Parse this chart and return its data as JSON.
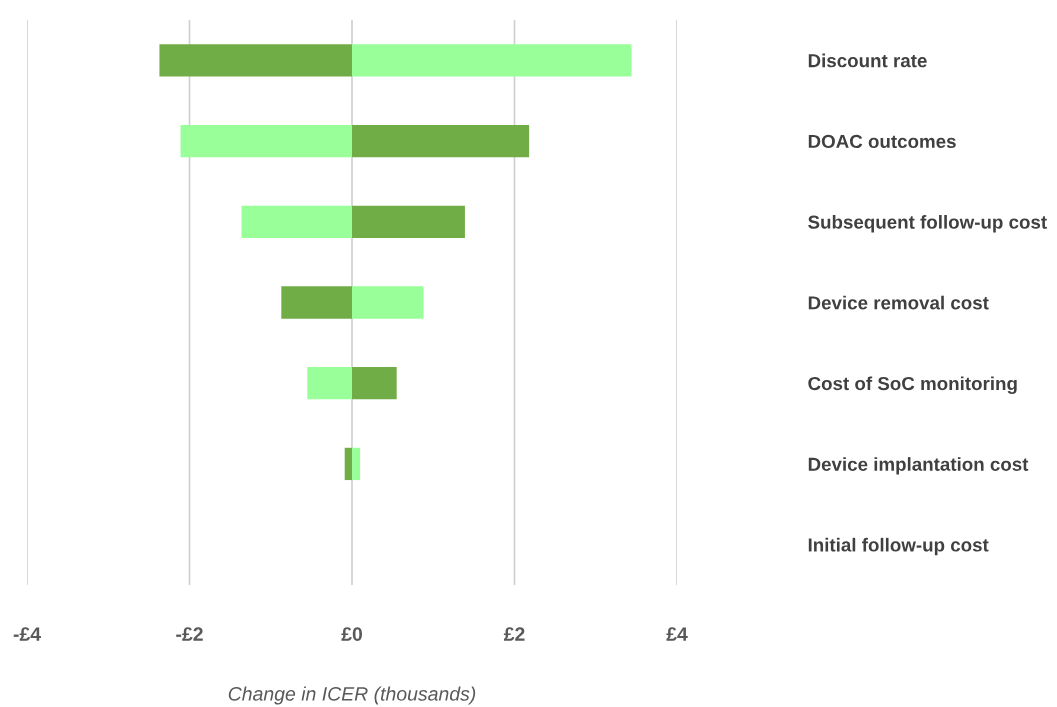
{
  "chart_data": {
    "type": "bar",
    "orientation": "horizontal",
    "xlabel": "Change in ICER (thousands)",
    "categories": [
      "Discount rate",
      "DOAC outcomes",
      "Subsequent follow-up cost",
      "Device removal cost",
      "Cost of SoC monitoring",
      "Device implantation cost",
      "Initial follow-up cost"
    ],
    "stacked": true,
    "series": [
      {
        "color": "#70ad47",
        "values": [
          -2.37,
          2.18,
          1.39,
          -0.87,
          0.55,
          -0.09,
          null
        ]
      },
      {
        "color": "#99ff99",
        "values": [
          3.44,
          -2.11,
          -1.36,
          0.88,
          -0.55,
          0.1,
          null
        ]
      }
    ],
    "xlim": [
      -4,
      4
    ],
    "xticks": [
      {
        "value": -4,
        "label": "-£4"
      },
      {
        "value": -2,
        "label": "-£2"
      },
      {
        "value": 0,
        "label": "£0"
      },
      {
        "value": 2,
        "label": "£2"
      },
      {
        "value": 4,
        "label": "£4"
      }
    ],
    "grid": "x"
  }
}
